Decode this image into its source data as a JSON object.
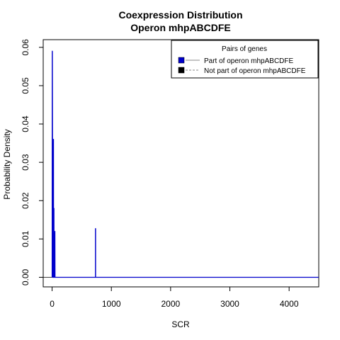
{
  "chart_data": {
    "type": "line",
    "title": "Coexpression Distribution",
    "subtitle": "Operon mhpABCDFE",
    "xlabel": "SCR",
    "ylabel": "Probability Density",
    "xlim": [
      -150,
      4500
    ],
    "ylim": [
      -0.0025,
      0.062
    ],
    "x_ticks": [
      0,
      1000,
      2000,
      3000,
      4000
    ],
    "x_tick_labels": [
      "0",
      "1000",
      "2000",
      "3000",
      "4000"
    ],
    "y_ticks": [
      0.0,
      0.01,
      0.02,
      0.03,
      0.04,
      0.05,
      0.06
    ],
    "y_tick_labels": [
      "0.00",
      "0.01",
      "0.02",
      "0.03",
      "0.04",
      "0.05",
      "0.06"
    ],
    "legend": {
      "title": "Pairs of genes",
      "position": "top-right",
      "entries": [
        {
          "label": "Part of operon mhpABCDFE",
          "color": "#0000cc",
          "line": "solid"
        },
        {
          "label": "Not part of operon mhpABCDFE",
          "color": "#000000",
          "line": "dashed"
        }
      ]
    },
    "series": [
      {
        "name": "Part of operon mhpABCDFE",
        "color": "#0000cc",
        "x": [
          0,
          2,
          5,
          8,
          10,
          12,
          14,
          16,
          18,
          20,
          22,
          24,
          26,
          28,
          30,
          32,
          34,
          36,
          38,
          40,
          42,
          44,
          46,
          48,
          50,
          52,
          54,
          56,
          58,
          60,
          62,
          65,
          70,
          80,
          100,
          200,
          400,
          600,
          725,
          728,
          731,
          734,
          737,
          740,
          760,
          1000,
          2000,
          3000,
          4000,
          4500
        ],
        "y": [
          0.0,
          0.059,
          0.059,
          0.03,
          0.0,
          0.0,
          0.023,
          0.0,
          0.0,
          0.02,
          0.036,
          0.036,
          0.0,
          0.0,
          0.0,
          0.018,
          0.0,
          0.0,
          0.0,
          0.0,
          0.0,
          0.011,
          0.011,
          0.012,
          0.0,
          0.0,
          0.0,
          0.0,
          0.0,
          0.0,
          0.0,
          0.0,
          0.0,
          0.0,
          0.0,
          0.0,
          0.0,
          0.0,
          0.0,
          0.0,
          0.0,
          0.0,
          0.0,
          0.0,
          0.0,
          0.0,
          0.0,
          0.0,
          0.0,
          0.0
        ]
      },
      {
        "name": "Not part of operon mhpABCDFE",
        "color": "#000000",
        "x": [
          -150,
          0,
          500,
          1000,
          2000,
          3000,
          3500,
          4000,
          4200,
          4300,
          4500
        ],
        "y": [
          0.0,
          0.0,
          0.0,
          0.0,
          0.0,
          0.0,
          1e-05,
          2e-05,
          1e-05,
          0.0,
          0.0
        ]
      }
    ],
    "spike": {
      "x": 733,
      "y": 0.0128
    }
  }
}
